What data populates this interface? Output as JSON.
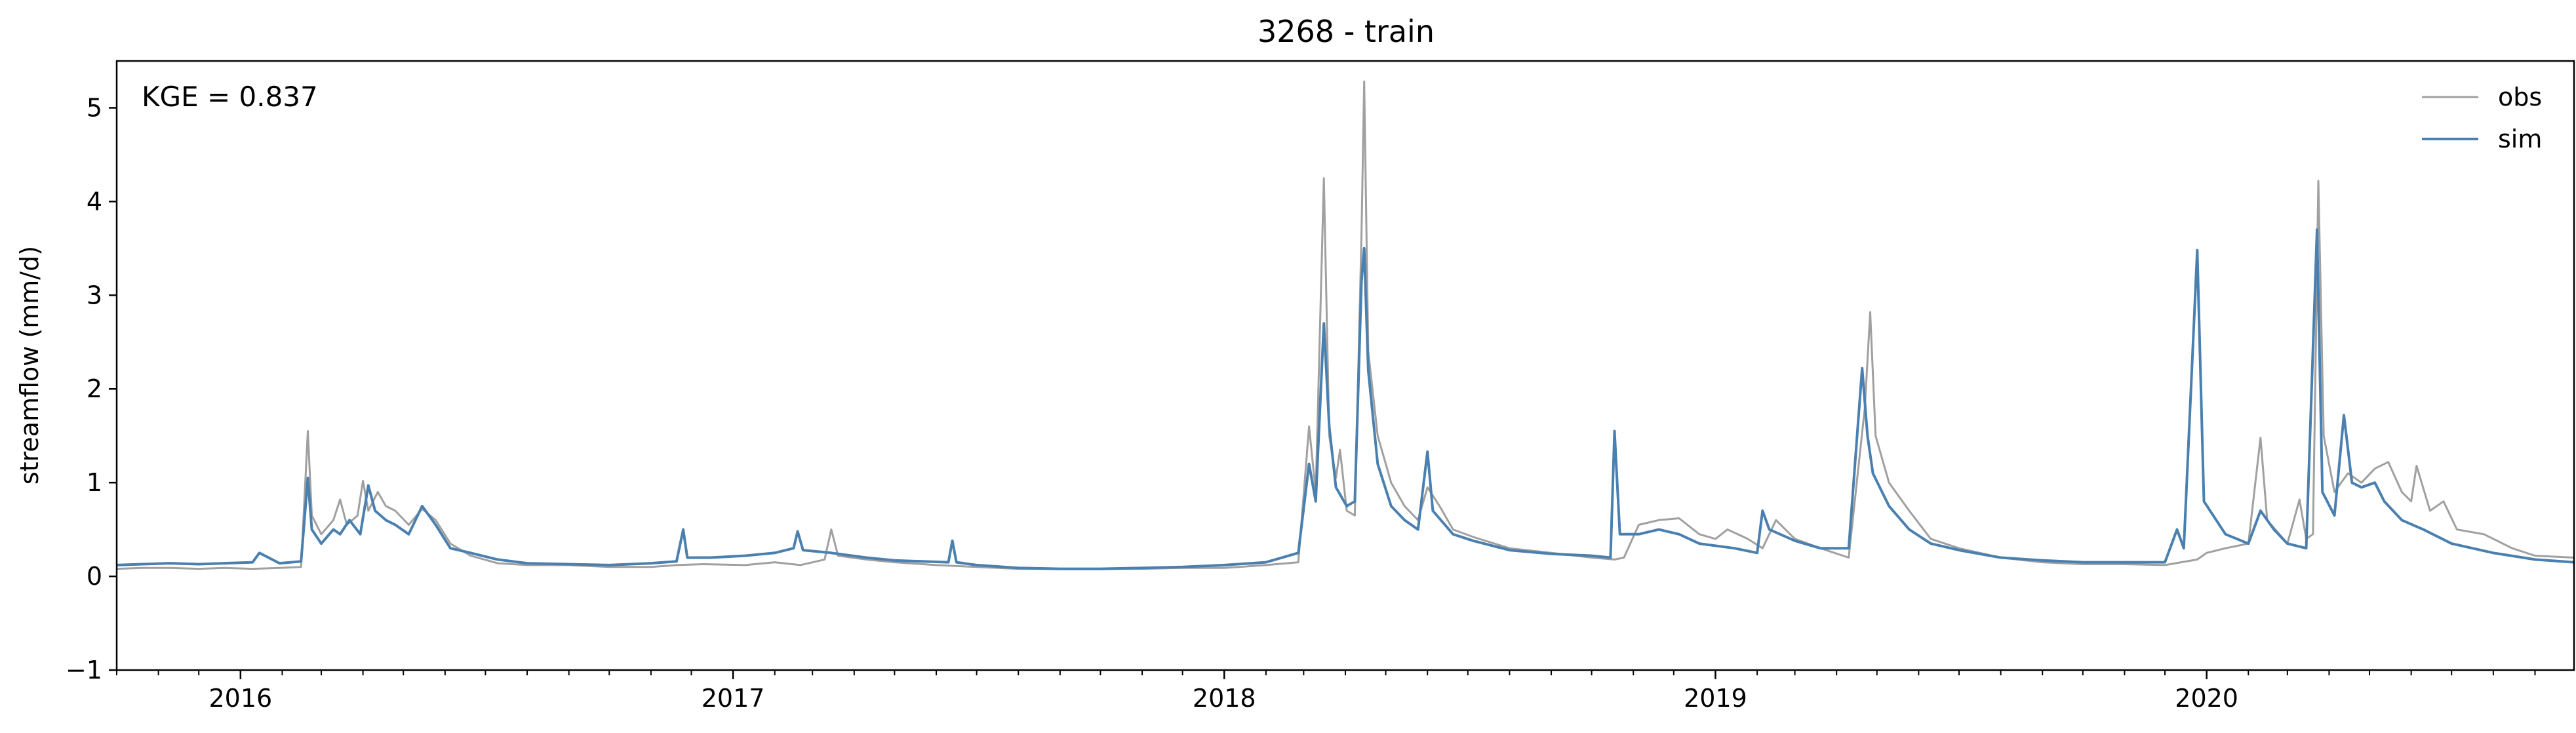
{
  "chart_data": {
    "type": "line",
    "title": "3268 - train",
    "xlabel": "",
    "ylabel": "streamflow (mm/d)",
    "annotation": "KGE = 0.837",
    "xlim": [
      "2015-10-01",
      "2020-09-30"
    ],
    "ylim": [
      -1,
      5.5
    ],
    "yticks": [
      -1,
      0,
      1,
      2,
      3,
      4,
      5
    ],
    "xticks": [
      {
        "date": "2016-01-01",
        "label": "2016"
      },
      {
        "date": "2017-01-01",
        "label": "2017"
      },
      {
        "date": "2018-01-01",
        "label": "2018"
      },
      {
        "date": "2019-01-01",
        "label": "2019"
      },
      {
        "date": "2020-01-01",
        "label": "2020"
      }
    ],
    "grid": false,
    "legend": "top-right",
    "series": [
      {
        "name": "obs",
        "color": "#a0a0a0",
        "points": [
          [
            "2015-10-01",
            0.08
          ],
          [
            "2015-10-20",
            0.09
          ],
          [
            "2015-11-10",
            0.09
          ],
          [
            "2015-12-01",
            0.08
          ],
          [
            "2015-12-20",
            0.09
          ],
          [
            "2016-01-10",
            0.08
          ],
          [
            "2016-01-30",
            0.09
          ],
          [
            "2016-02-15",
            0.1
          ],
          [
            "2016-02-20",
            1.55
          ],
          [
            "2016-02-23",
            0.65
          ],
          [
            "2016-03-01",
            0.45
          ],
          [
            "2016-03-10",
            0.6
          ],
          [
            "2016-03-15",
            0.82
          ],
          [
            "2016-03-20",
            0.55
          ],
          [
            "2016-03-28",
            0.65
          ],
          [
            "2016-04-01",
            1.02
          ],
          [
            "2016-04-05",
            0.7
          ],
          [
            "2016-04-12",
            0.9
          ],
          [
            "2016-04-18",
            0.75
          ],
          [
            "2016-04-25",
            0.7
          ],
          [
            "2016-05-05",
            0.55
          ],
          [
            "2016-05-15",
            0.72
          ],
          [
            "2016-05-25",
            0.6
          ],
          [
            "2016-06-05",
            0.35
          ],
          [
            "2016-06-20",
            0.22
          ],
          [
            "2016-07-10",
            0.14
          ],
          [
            "2016-08-01",
            0.12
          ],
          [
            "2016-09-01",
            0.12
          ],
          [
            "2016-10-01",
            0.1
          ],
          [
            "2016-11-01",
            0.1
          ],
          [
            "2016-11-20",
            0.12
          ],
          [
            "2016-12-10",
            0.13
          ],
          [
            "2017-01-10",
            0.12
          ],
          [
            "2017-02-01",
            0.15
          ],
          [
            "2017-02-20",
            0.12
          ],
          [
            "2017-03-10",
            0.18
          ],
          [
            "2017-03-15",
            0.5
          ],
          [
            "2017-03-20",
            0.22
          ],
          [
            "2017-04-10",
            0.18
          ],
          [
            "2017-05-01",
            0.15
          ],
          [
            "2017-06-01",
            0.12
          ],
          [
            "2017-07-01",
            0.1
          ],
          [
            "2017-08-01",
            0.08
          ],
          [
            "2017-09-01",
            0.08
          ],
          [
            "2017-10-01",
            0.08
          ],
          [
            "2017-11-01",
            0.08
          ],
          [
            "2017-12-01",
            0.09
          ],
          [
            "2018-01-01",
            0.09
          ],
          [
            "2018-02-01",
            0.12
          ],
          [
            "2018-02-25",
            0.15
          ],
          [
            "2018-03-05",
            1.6
          ],
          [
            "2018-03-10",
            0.9
          ],
          [
            "2018-03-16",
            4.25
          ],
          [
            "2018-03-20",
            1.5
          ],
          [
            "2018-03-25",
            1.05
          ],
          [
            "2018-03-28",
            1.35
          ],
          [
            "2018-04-02",
            0.7
          ],
          [
            "2018-04-08",
            0.65
          ],
          [
            "2018-04-13",
            3.65
          ],
          [
            "2018-04-15",
            5.28
          ],
          [
            "2018-04-18",
            2.4
          ],
          [
            "2018-04-25",
            1.5
          ],
          [
            "2018-05-05",
            1.0
          ],
          [
            "2018-05-15",
            0.75
          ],
          [
            "2018-05-25",
            0.6
          ],
          [
            "2018-06-01",
            0.95
          ],
          [
            "2018-06-10",
            0.75
          ],
          [
            "2018-06-20",
            0.5
          ],
          [
            "2018-07-05",
            0.42
          ],
          [
            "2018-08-01",
            0.3
          ],
          [
            "2018-09-01",
            0.25
          ],
          [
            "2018-10-01",
            0.2
          ],
          [
            "2018-10-18",
            0.18
          ],
          [
            "2018-10-25",
            0.2
          ],
          [
            "2018-11-05",
            0.55
          ],
          [
            "2018-11-20",
            0.6
          ],
          [
            "2018-12-05",
            0.62
          ],
          [
            "2018-12-20",
            0.45
          ],
          [
            "2019-01-01",
            0.4
          ],
          [
            "2019-01-10",
            0.5
          ],
          [
            "2019-01-25",
            0.4
          ],
          [
            "2019-02-05",
            0.3
          ],
          [
            "2019-02-15",
            0.6
          ],
          [
            "2019-03-01",
            0.4
          ],
          [
            "2019-03-20",
            0.3
          ],
          [
            "2019-04-10",
            0.2
          ],
          [
            "2019-04-22",
            1.8
          ],
          [
            "2019-04-26",
            2.82
          ],
          [
            "2019-04-30",
            1.5
          ],
          [
            "2019-05-10",
            1.0
          ],
          [
            "2019-05-25",
            0.7
          ],
          [
            "2019-06-10",
            0.4
          ],
          [
            "2019-07-01",
            0.3
          ],
          [
            "2019-08-01",
            0.2
          ],
          [
            "2019-09-01",
            0.15
          ],
          [
            "2019-10-01",
            0.13
          ],
          [
            "2019-11-01",
            0.13
          ],
          [
            "2019-12-01",
            0.12
          ],
          [
            "2019-12-25",
            0.18
          ],
          [
            "2020-01-01",
            0.25
          ],
          [
            "2020-01-15",
            0.3
          ],
          [
            "2020-02-01",
            0.35
          ],
          [
            "2020-02-10",
            1.48
          ],
          [
            "2020-02-15",
            0.6
          ],
          [
            "2020-03-01",
            0.35
          ],
          [
            "2020-03-10",
            0.82
          ],
          [
            "2020-03-15",
            0.4
          ],
          [
            "2020-03-20",
            0.45
          ],
          [
            "2020-03-24",
            4.22
          ],
          [
            "2020-03-28",
            1.5
          ],
          [
            "2020-04-05",
            0.9
          ],
          [
            "2020-04-15",
            1.1
          ],
          [
            "2020-04-25",
            1.0
          ],
          [
            "2020-05-05",
            1.15
          ],
          [
            "2020-05-15",
            1.22
          ],
          [
            "2020-05-25",
            0.9
          ],
          [
            "2020-06-01",
            0.8
          ],
          [
            "2020-06-05",
            1.18
          ],
          [
            "2020-06-15",
            0.7
          ],
          [
            "2020-06-25",
            0.8
          ],
          [
            "2020-07-05",
            0.5
          ],
          [
            "2020-07-25",
            0.45
          ],
          [
            "2020-08-15",
            0.3
          ],
          [
            "2020-09-01",
            0.22
          ],
          [
            "2020-09-30",
            0.2
          ]
        ]
      },
      {
        "name": "sim",
        "color": "#4a80b0",
        "points": [
          [
            "2015-10-01",
            0.12
          ],
          [
            "2015-10-20",
            0.13
          ],
          [
            "2015-11-10",
            0.14
          ],
          [
            "2015-12-01",
            0.13
          ],
          [
            "2015-12-20",
            0.14
          ],
          [
            "2016-01-10",
            0.15
          ],
          [
            "2016-01-15",
            0.25
          ],
          [
            "2016-01-30",
            0.14
          ],
          [
            "2016-02-15",
            0.16
          ],
          [
            "2016-02-20",
            1.05
          ],
          [
            "2016-02-23",
            0.5
          ],
          [
            "2016-03-01",
            0.35
          ],
          [
            "2016-03-10",
            0.5
          ],
          [
            "2016-03-15",
            0.45
          ],
          [
            "2016-03-22",
            0.6
          ],
          [
            "2016-03-30",
            0.45
          ],
          [
            "2016-04-05",
            0.97
          ],
          [
            "2016-04-10",
            0.7
          ],
          [
            "2016-04-18",
            0.6
          ],
          [
            "2016-04-25",
            0.55
          ],
          [
            "2016-05-05",
            0.45
          ],
          [
            "2016-05-15",
            0.75
          ],
          [
            "2016-05-25",
            0.55
          ],
          [
            "2016-06-05",
            0.3
          ],
          [
            "2016-06-20",
            0.25
          ],
          [
            "2016-07-10",
            0.18
          ],
          [
            "2016-08-01",
            0.14
          ],
          [
            "2016-09-01",
            0.13
          ],
          [
            "2016-10-01",
            0.12
          ],
          [
            "2016-11-01",
            0.14
          ],
          [
            "2016-11-20",
            0.16
          ],
          [
            "2016-11-25",
            0.5
          ],
          [
            "2016-11-28",
            0.2
          ],
          [
            "2016-12-15",
            0.2
          ],
          [
            "2017-01-10",
            0.22
          ],
          [
            "2017-02-01",
            0.25
          ],
          [
            "2017-02-15",
            0.3
          ],
          [
            "2017-02-18",
            0.48
          ],
          [
            "2017-02-22",
            0.28
          ],
          [
            "2017-03-15",
            0.25
          ],
          [
            "2017-04-10",
            0.2
          ],
          [
            "2017-05-01",
            0.17
          ],
          [
            "2017-06-10",
            0.15
          ],
          [
            "2017-06-13",
            0.38
          ],
          [
            "2017-06-16",
            0.15
          ],
          [
            "2017-07-01",
            0.12
          ],
          [
            "2017-08-01",
            0.09
          ],
          [
            "2017-09-01",
            0.08
          ],
          [
            "2017-10-01",
            0.08
          ],
          [
            "2017-11-01",
            0.09
          ],
          [
            "2017-12-01",
            0.1
          ],
          [
            "2018-01-01",
            0.12
          ],
          [
            "2018-02-01",
            0.15
          ],
          [
            "2018-02-25",
            0.25
          ],
          [
            "2018-03-05",
            1.2
          ],
          [
            "2018-03-10",
            0.8
          ],
          [
            "2018-03-16",
            2.7
          ],
          [
            "2018-03-20",
            1.6
          ],
          [
            "2018-03-25",
            0.95
          ],
          [
            "2018-04-02",
            0.75
          ],
          [
            "2018-04-08",
            0.8
          ],
          [
            "2018-04-13",
            3.15
          ],
          [
            "2018-04-15",
            3.5
          ],
          [
            "2018-04-18",
            2.2
          ],
          [
            "2018-04-25",
            1.2
          ],
          [
            "2018-05-05",
            0.75
          ],
          [
            "2018-05-15",
            0.6
          ],
          [
            "2018-05-25",
            0.5
          ],
          [
            "2018-06-01",
            1.33
          ],
          [
            "2018-06-05",
            0.7
          ],
          [
            "2018-06-20",
            0.45
          ],
          [
            "2018-07-05",
            0.38
          ],
          [
            "2018-08-01",
            0.28
          ],
          [
            "2018-09-01",
            0.24
          ],
          [
            "2018-10-01",
            0.22
          ],
          [
            "2018-10-15",
            0.2
          ],
          [
            "2018-10-18",
            1.55
          ],
          [
            "2018-10-22",
            0.45
          ],
          [
            "2018-11-05",
            0.45
          ],
          [
            "2018-11-20",
            0.5
          ],
          [
            "2018-12-05",
            0.45
          ],
          [
            "2018-12-20",
            0.35
          ],
          [
            "2019-01-15",
            0.3
          ],
          [
            "2019-02-01",
            0.25
          ],
          [
            "2019-02-05",
            0.7
          ],
          [
            "2019-02-10",
            0.5
          ],
          [
            "2019-03-01",
            0.38
          ],
          [
            "2019-03-20",
            0.3
          ],
          [
            "2019-04-10",
            0.3
          ],
          [
            "2019-04-20",
            2.22
          ],
          [
            "2019-04-24",
            1.5
          ],
          [
            "2019-04-28",
            1.1
          ],
          [
            "2019-05-10",
            0.75
          ],
          [
            "2019-05-25",
            0.5
          ],
          [
            "2019-06-10",
            0.35
          ],
          [
            "2019-07-01",
            0.28
          ],
          [
            "2019-08-01",
            0.2
          ],
          [
            "2019-09-01",
            0.17
          ],
          [
            "2019-10-01",
            0.15
          ],
          [
            "2019-11-01",
            0.15
          ],
          [
            "2019-12-01",
            0.15
          ],
          [
            "2019-12-10",
            0.5
          ],
          [
            "2019-12-15",
            0.3
          ],
          [
            "2019-12-25",
            3.48
          ],
          [
            "2019-12-30",
            0.8
          ],
          [
            "2020-01-15",
            0.45
          ],
          [
            "2020-02-01",
            0.35
          ],
          [
            "2020-02-10",
            0.7
          ],
          [
            "2020-02-20",
            0.5
          ],
          [
            "2020-03-01",
            0.35
          ],
          [
            "2020-03-15",
            0.3
          ],
          [
            "2020-03-23",
            3.7
          ],
          [
            "2020-03-27",
            0.9
          ],
          [
            "2020-04-05",
            0.65
          ],
          [
            "2020-04-12",
            1.72
          ],
          [
            "2020-04-18",
            1.0
          ],
          [
            "2020-04-25",
            0.95
          ],
          [
            "2020-05-05",
            1.0
          ],
          [
            "2020-05-12",
            0.8
          ],
          [
            "2020-05-25",
            0.6
          ],
          [
            "2020-06-10",
            0.5
          ],
          [
            "2020-07-01",
            0.35
          ],
          [
            "2020-08-01",
            0.25
          ],
          [
            "2020-09-01",
            0.18
          ],
          [
            "2020-09-30",
            0.15
          ]
        ]
      }
    ]
  }
}
